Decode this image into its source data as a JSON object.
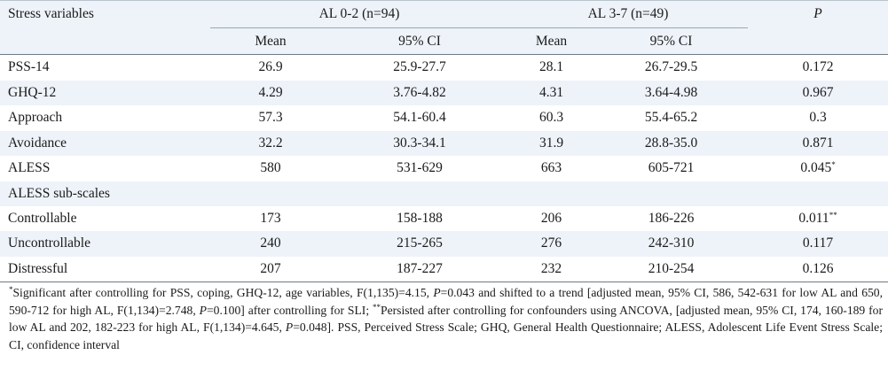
{
  "header": {
    "stress_variables": "Stress variables",
    "group1": "AL 0-2 (n=94)",
    "group2": "AL 3-7 (n=49)",
    "p": "P",
    "mean": "Mean",
    "ci": "95% CI"
  },
  "rows": [
    {
      "label": "PSS-14",
      "m1": "26.9",
      "ci1": "25.9-27.7",
      "m2": "28.1",
      "ci2": "26.7-29.5",
      "p": "0.172",
      "mark": ""
    },
    {
      "label": "GHQ-12",
      "m1": "4.29",
      "ci1": "3.76-4.82",
      "m2": "4.31",
      "ci2": "3.64-4.98",
      "p": "0.967",
      "mark": ""
    },
    {
      "label": "Approach",
      "m1": "57.3",
      "ci1": "54.1-60.4",
      "m2": "60.3",
      "ci2": "55.4-65.2",
      "p": "0.3",
      "mark": ""
    },
    {
      "label": "Avoidance",
      "m1": "32.2",
      "ci1": "30.3-34.1",
      "m2": "31.9",
      "ci2": "28.8-35.0",
      "p": "0.871",
      "mark": ""
    },
    {
      "label": "ALESS",
      "m1": "580",
      "ci1": "531-629",
      "m2": "663",
      "ci2": "605-721",
      "p": "0.045",
      "mark": "*"
    }
  ],
  "section": "ALESS sub-scales",
  "subrows": [
    {
      "label": "Controllable",
      "m1": "173",
      "ci1": "158-188",
      "m2": "206",
      "ci2": "186-226",
      "p": "0.011",
      "mark": "**"
    },
    {
      "label": "Uncontrollable",
      "m1": "240",
      "ci1": "215-265",
      "m2": "276",
      "ci2": "242-310",
      "p": "0.117",
      "mark": ""
    },
    {
      "label": "Distressful",
      "m1": "207",
      "ci1": "187-227",
      "m2": "232",
      "ci2": "210-254",
      "p": "0.126",
      "mark": ""
    }
  ],
  "footnote": {
    "mark1": "*",
    "part1": "Significant after controlling for PSS, coping, GHQ-12, age variables, F(1,135)=4.15, ",
    "p_label": "P",
    "part2": "=0.043 and shifted to a trend [adjusted mean, 95% CI, 586, 542-631 for low AL and 650, 590-712 for high AL, F(1,134)=2.748, ",
    "part3": "=0.100] after controlling for SLI; ",
    "mark2": "**",
    "part4": "Persisted after controlling for confounders using ANCOVA, [adjusted mean, 95% CI, 174, 160-189 for low AL and 202, 182-223 for high AL, F(1,134)=4.645, ",
    "part5": "=0.048]. PSS, Perceived Stress Scale; GHQ, General Health Questionnaire; ALESS, Adolescent Life Event Stress Scale; CI, confidence interval"
  }
}
